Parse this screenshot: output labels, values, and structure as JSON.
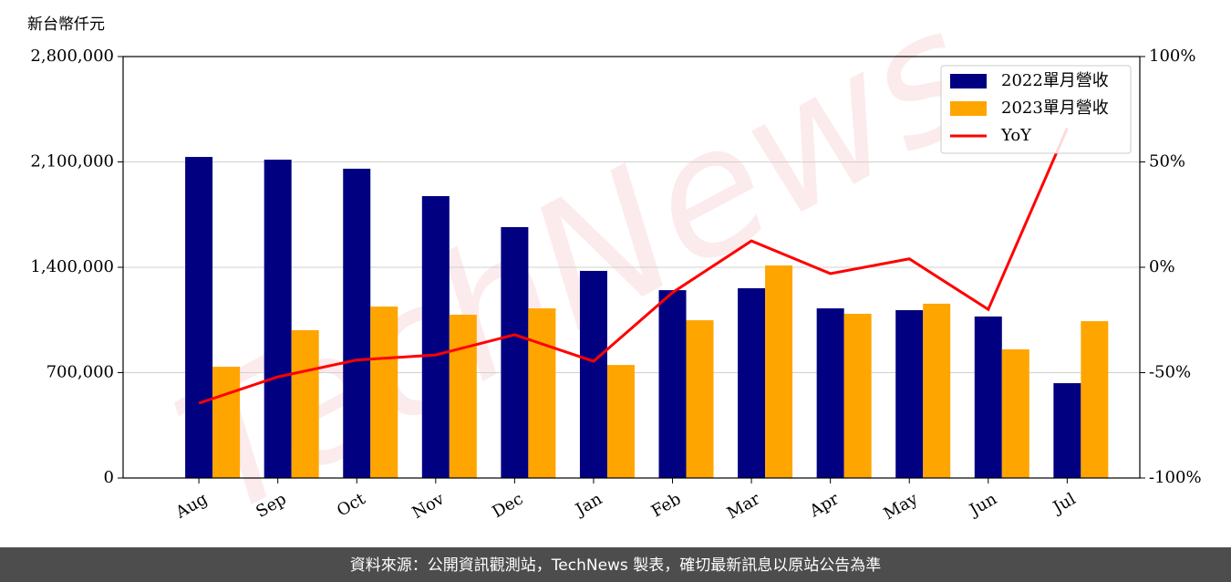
{
  "chart_data": {
    "type": "bar_line",
    "y_label": "新台幣仟元",
    "watermark": "TechNews",
    "footer": "資料來源：公開資訊觀測站，TechNews 製表，確切最新訊息以原站公告為準",
    "categories": [
      "Aug",
      "Sep",
      "Oct",
      "Nov",
      "Dec",
      "Jan",
      "Feb",
      "Mar",
      "Apr",
      "May",
      "Jun",
      "Jul"
    ],
    "series": [
      {
        "name": "2022單月營收",
        "color": "#000080",
        "type": "bar",
        "values": [
          2133000,
          2115000,
          2055000,
          1873000,
          1667000,
          1376000,
          1248000,
          1261000,
          1127000,
          1115000,
          1073000,
          630000
        ]
      },
      {
        "name": "2023單月營收",
        "color": "#ffa500",
        "type": "bar",
        "values": [
          739000,
          982000,
          1139000,
          1085000,
          1127000,
          751000,
          1048000,
          1412000,
          1091000,
          1158000,
          855000,
          1042000
        ]
      },
      {
        "name": "YoY",
        "color": "#ff0000",
        "type": "line",
        "axis": "y2",
        "values": [
          -64.5,
          -52,
          -44,
          -41.6,
          -32,
          -44.6,
          -12,
          12.5,
          -3,
          4,
          -20,
          66
        ]
      }
    ],
    "ylim": [
      0,
      2800000
    ],
    "yticks": [
      0,
      {
        "value": 700000,
        "label": "700,000"
      },
      {
        "value": 1400000,
        "label": "1,400,000"
      },
      {
        "value": 2100000,
        "label": "2,100,000"
      },
      {
        "value": 2800000,
        "label": "2,800,000"
      }
    ],
    "y2lim": [
      -100,
      100
    ],
    "y2ticks": [
      {
        "value": -100,
        "label": "-100%"
      },
      {
        "value": -50,
        "label": "-50%"
      },
      {
        "value": 0,
        "label": "0%"
      },
      {
        "value": 50,
        "label": "50%"
      },
      {
        "value": 100,
        "label": "100%"
      }
    ],
    "grid": true,
    "legend": "upper right"
  }
}
